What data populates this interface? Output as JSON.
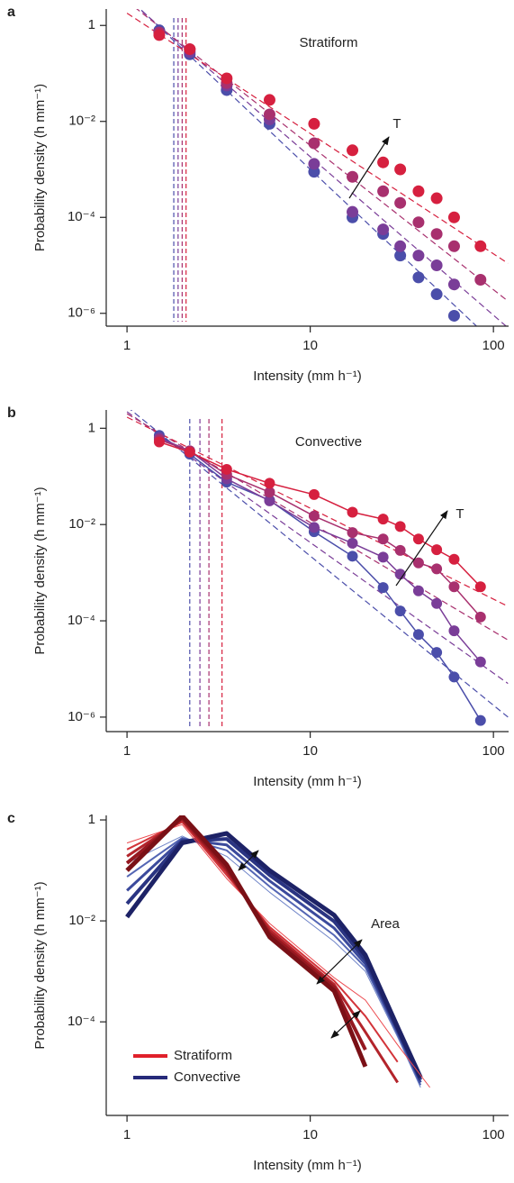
{
  "chart_data": [
    {
      "type": "scatter",
      "panel_label": "a",
      "xlabel": "Intensity (mm h⁻¹)",
      "ylabel": "Probability density (h mm⁻¹)",
      "log_x": true,
      "log_y": true,
      "xlim": [
        0.77,
        121
      ],
      "ylim": [
        5.4e-07,
        2.2
      ],
      "xticks": [
        1,
        10,
        100
      ],
      "yticks": [
        1,
        {
          "value": 0.01,
          "label": "10⁻²"
        },
        {
          "value": 0.0001,
          "label": "10⁻⁴"
        },
        {
          "value": 1e-06,
          "label": "10⁻⁶"
        }
      ],
      "annotations": [
        "Stratiform",
        "T"
      ],
      "x": [
        1.5,
        2.2,
        3.5,
        6,
        10.5,
        17,
        25,
        31,
        39,
        49,
        61,
        85
      ],
      "series": [
        {
          "color": "#4b4eaa",
          "values": [
            0.79,
            0.25,
            0.045,
            0.0089,
            0.00089,
            0.0001,
            4.5e-05,
            1.6e-05,
            5.6e-06,
            2.5e-06,
            8.9e-07,
            null
          ],
          "fit": {
            "x": [
              1,
              120
            ],
            "values": [
              4,
              1.3e-07
            ]
          },
          "threshold": 1.8
        },
        {
          "color": "#7a3d98",
          "values": [
            0.71,
            0.28,
            0.056,
            0.011,
            0.0013,
            0.00013,
            5.6e-05,
            2.5e-05,
            1.6e-05,
            1e-05,
            4e-06,
            null
          ],
          "fit": {
            "x": [
              1,
              120
            ],
            "values": [
              3.7,
              5e-07
            ]
          },
          "threshold": 1.9
        },
        {
          "color": "#a8306e",
          "values": [
            0.71,
            0.32,
            0.063,
            0.014,
            0.0035,
            0.0007,
            0.00035,
            0.0002,
            7.9e-05,
            4.5e-05,
            2.5e-05,
            5e-06
          ],
          "fit": {
            "x": [
              1,
              120
            ],
            "values": [
              3.2,
              1.8e-06
            ]
          },
          "threshold": 2.0
        },
        {
          "color": "#d6203f",
          "values": [
            0.63,
            0.32,
            0.079,
            0.028,
            0.0089,
            0.0025,
            0.0014,
            0.001,
            0.00035,
            0.00025,
            0.0001,
            2.5e-05
          ],
          "fit": {
            "x": [
              1,
              120
            ],
            "values": [
              1.8,
              1.1e-05
            ]
          },
          "threshold": 2.1
        }
      ]
    },
    {
      "type": "line",
      "panel_label": "b",
      "xlabel": "Intensity (mm h⁻¹)",
      "ylabel": "Probability density (h mm⁻¹)",
      "log_x": true,
      "log_y": true,
      "xlim": [
        0.77,
        121
      ],
      "ylim": [
        5e-07,
        2.4
      ],
      "xticks": [
        1,
        10,
        100
      ],
      "yticks": [
        1,
        {
          "value": 0.01,
          "label": "10⁻²"
        },
        {
          "value": 0.0001,
          "label": "10⁻⁴"
        },
        {
          "value": 1e-06,
          "label": "10⁻⁶"
        }
      ],
      "annotations": [
        "Convective",
        "T"
      ],
      "x": [
        1.5,
        2.2,
        3.5,
        6,
        10.5,
        17,
        25,
        31,
        39,
        49,
        61,
        85
      ],
      "series": [
        {
          "color": "#4b4eaa",
          "values": [
            0.71,
            0.29,
            0.076,
            0.032,
            0.0071,
            0.0022,
            0.00049,
            0.00016,
            5.2e-05,
            2.2e-05,
            6.8e-06,
            8.5e-07
          ],
          "fit": {
            "x": [
              1,
              120
            ],
            "values": [
              2.8,
              1e-06
            ]
          },
          "threshold": 2.2
        },
        {
          "color": "#7a3d98",
          "values": [
            0.63,
            0.34,
            0.089,
            0.031,
            0.0087,
            0.0041,
            0.0021,
            0.00093,
            0.00042,
            0.00023,
            6.2e-05,
            1.4e-05
          ],
          "fit": {
            "x": [
              1,
              120
            ],
            "values": [
              2.2,
              5e-06
            ]
          },
          "threshold": 2.5
        },
        {
          "color": "#a8306e",
          "values": [
            0.58,
            0.34,
            0.11,
            0.047,
            0.015,
            0.0068,
            0.005,
            0.0029,
            0.0016,
            0.0012,
            0.00051,
            0.00012
          ],
          "fit": {
            "x": [
              1,
              120
            ],
            "values": [
              2,
              4e-05
            ]
          },
          "threshold": 2.8
        },
        {
          "color": "#d6203f",
          "values": [
            0.52,
            0.32,
            0.14,
            0.072,
            0.042,
            0.018,
            0.013,
            0.0091,
            0.005,
            0.003,
            0.0019,
            0.00051
          ],
          "fit": {
            "x": [
              1,
              120
            ],
            "values": [
              1.7,
              0.0002
            ]
          },
          "threshold": 3.3
        }
      ]
    },
    {
      "type": "line",
      "panel_label": "c",
      "xlabel": "Intensity (mm h⁻¹)",
      "ylabel": "Probability density (h mm⁻¹)",
      "log_x": true,
      "log_y": true,
      "xlim": [
        0.77,
        121
      ],
      "ylim": [
        1.4e-06,
        1.23
      ],
      "xticks": [
        1,
        10,
        100
      ],
      "yticks": [
        1,
        {
          "value": 0.01,
          "label": "10⁻²"
        },
        {
          "value": 0.0001,
          "label": "10⁻⁴"
        }
      ],
      "annotations": [
        "Area"
      ],
      "series": [
        {
          "name": "Convective",
          "color": "#262a7a",
          "x": [
            1,
            2,
            3.5,
            6,
            13.5,
            20,
            30,
            40
          ],
          "lines": [
            {
              "color": "#7085c8",
              "values": [
                0.14,
                0.48,
                0.19,
                0.037,
                0.0039,
                0.001,
                5e-05,
                5e-06
              ]
            },
            {
              "color": "#5466b4",
              "values": [
                0.075,
                0.44,
                0.25,
                0.048,
                0.0052,
                0.0012,
                5.6e-05,
                5.6e-06
              ]
            },
            {
              "color": "#3b4a9c",
              "values": [
                0.04,
                0.41,
                0.32,
                0.062,
                0.0072,
                0.0014,
                6.3e-05,
                6.3e-06
              ]
            },
            {
              "color": "#2a3482",
              "values": [
                0.022,
                0.38,
                0.42,
                0.081,
                0.0098,
                0.0017,
                7.1e-05,
                7.1e-06
              ]
            },
            {
              "color": "#1d2266",
              "values": [
                0.012,
                0.35,
                0.54,
                0.1,
                0.013,
                0.0021,
                7.9e-05,
                7.9e-06
              ]
            }
          ]
        },
        {
          "name": "Stratiform",
          "color": "#e0202a",
          "x": [
            1,
            2,
            3.5,
            6,
            13.5,
            20,
            30,
            45
          ],
          "lines": [
            {
              "color": "#ec4a4f",
              "values": [
                0.35,
                0.81,
                0.069,
                0.0089,
                0.00075,
                0.00027,
                3.5e-05,
                5e-06
              ]
            },
            {
              "color": "#d3343a",
              "values": [
                0.26,
                0.91,
                0.081,
                0.0076,
                0.00065,
                0.00013,
                1.6e-05,
                null
              ]
            },
            {
              "color": "#b3242b",
              "values": [
                0.19,
                1,
                0.095,
                0.0066,
                0.00055,
                6.3e-05,
                6.3e-06,
                null
              ]
            },
            {
              "color": "#951820",
              "values": [
                0.14,
                1.1,
                0.11,
                0.0056,
                0.00048,
                2.8e-05,
                null,
                null
              ]
            },
            {
              "color": "#7a1016",
              "values": [
                0.1,
                1.2,
                0.13,
                0.0048,
                0.00041,
                1.3e-05,
                null,
                null
              ]
            }
          ]
        }
      ]
    }
  ]
}
